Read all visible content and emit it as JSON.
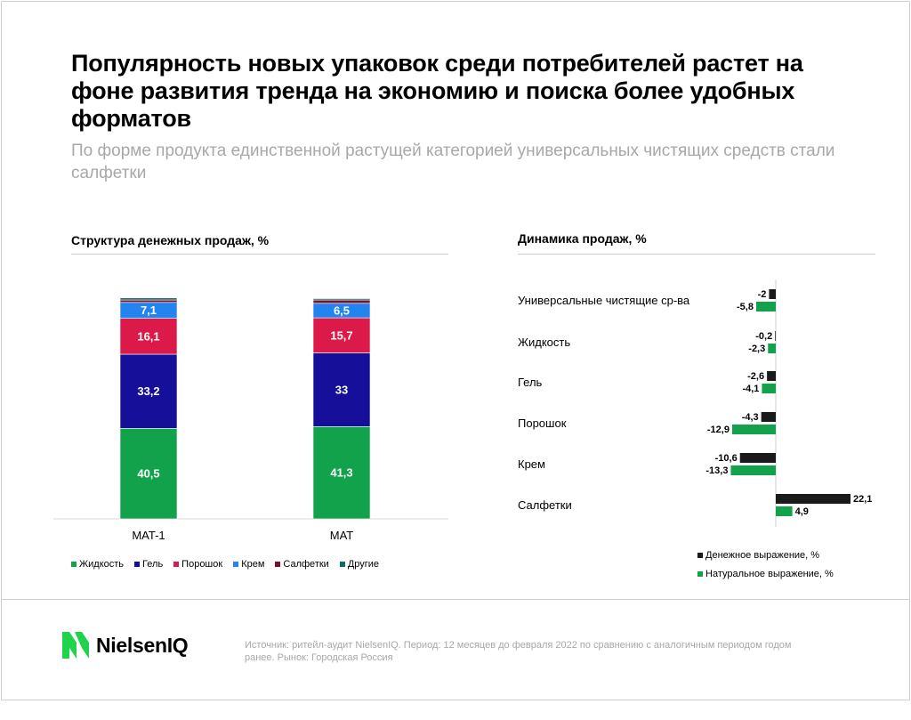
{
  "title": "Популярность новых упаковок среди потребителей растет на фоне развития тренда на экономию и поиска более удобных форматов",
  "subtitle": "По форме продукта единственной растущей категорией универсальных чистящих средств стали салфетки",
  "footer": {
    "brand": "NielsenIQ",
    "source": "Источник: ритейл-аудит NielsenIQ. Период: 12 месяцев до февраля 2022 по сравнению с аналогичным периодом годом ранее. Рынок: Городская Россия"
  },
  "colors": {
    "liquid": "#12a24b",
    "gel": "#150f9a",
    "powder": "#dc1a4a",
    "cream": "#2384f0",
    "wipes": "#7a0f2e",
    "other": "#0c6b63",
    "money": "#1a1a1a",
    "natural": "#12a24b"
  },
  "chart_data": [
    {
      "type": "bar",
      "stacked": true,
      "title": "Структура денежных продаж, %",
      "categories": [
        "MAT-1",
        "MAT"
      ],
      "series": [
        {
          "name": "Жидкость",
          "values": [
            40.5,
            41.3
          ],
          "labels": [
            "40,5",
            "41,3"
          ]
        },
        {
          "name": "Гель",
          "values": [
            33.2,
            33
          ],
          "labels": [
            "33,2",
            "33"
          ]
        },
        {
          "name": "Порошок",
          "values": [
            16.1,
            15.7
          ],
          "labels": [
            "16,1",
            "15,7"
          ]
        },
        {
          "name": "Крем",
          "values": [
            7.1,
            6.5
          ],
          "labels": [
            "7,1",
            "6,5"
          ]
        },
        {
          "name": "Салфетки",
          "values": [
            1.1,
            1.5
          ],
          "labels": [
            "",
            ""
          ]
        },
        {
          "name": "Другие",
          "values": [
            0.9,
            0.6
          ],
          "labels": [
            "",
            ""
          ]
        }
      ],
      "ylim": [
        0,
        100
      ],
      "legend": "bottom"
    },
    {
      "type": "bar",
      "orientation": "horizontal",
      "title": "Динамика продаж, %",
      "categories": [
        "Универсальные чистящие ср-ва",
        "Жидкость",
        "Гель",
        "Порошок",
        "Крем",
        "Салфетки"
      ],
      "series": [
        {
          "name": "Денежное выражение, %",
          "values": [
            -2,
            -0.2,
            -2.6,
            -4.3,
            -10.6,
            22.1
          ],
          "labels": [
            "-2",
            "-0,2",
            "-2,6",
            "-4,3",
            "-10,6",
            "22,1"
          ]
        },
        {
          "name": "Натуральное выражение, %",
          "values": [
            -5.8,
            -2.3,
            -4.1,
            -12.9,
            -13.3,
            4.9
          ],
          "labels": [
            "-5,8",
            "-2,3",
            "-4,1",
            "-12,9",
            "-13,3",
            "4,9"
          ]
        }
      ],
      "legend": "bottom-right"
    }
  ]
}
